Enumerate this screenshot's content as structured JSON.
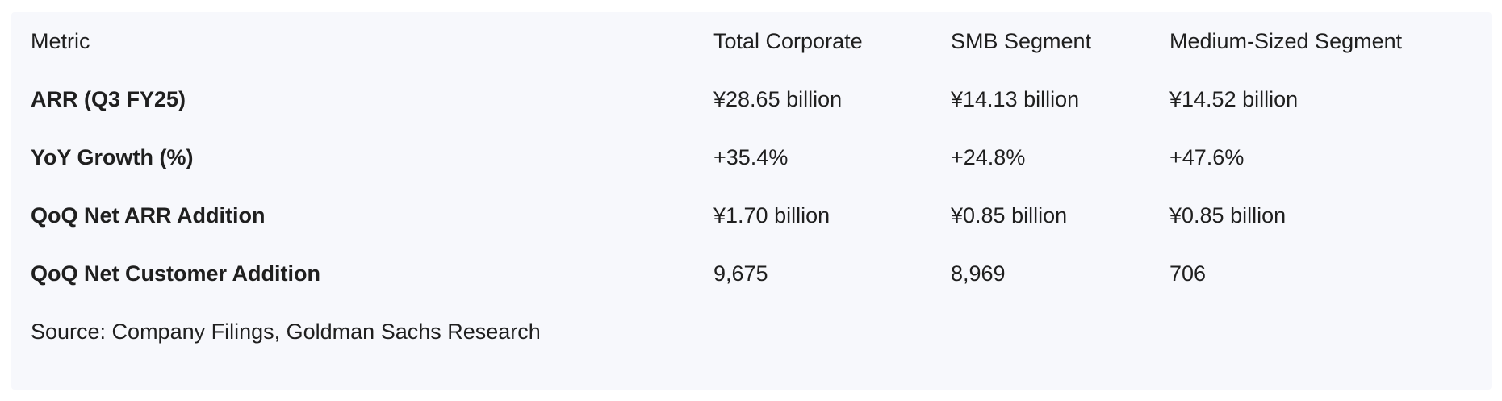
{
  "table": {
    "headers": [
      "Metric",
      "Total Corporate",
      "SMB Segment",
      "Medium-Sized Segment"
    ],
    "rows": [
      [
        "ARR (Q3 FY25)",
        "¥28.65 billion",
        "¥14.13 billion",
        "¥14.52 billion"
      ],
      [
        "YoY Growth (%)",
        "+35.4%",
        "+24.8%",
        "+47.6%"
      ],
      [
        "QoQ Net ARR Addition",
        "¥1.70 billion",
        "¥0.85 billion",
        "¥0.85 billion"
      ],
      [
        "QoQ Net Customer Addition",
        "9,675",
        "8,969",
        "706"
      ]
    ]
  },
  "source": "Source: Company Filings, Goldman Sachs Research",
  "colors": {
    "panel_background": "#f7f8fc",
    "text": "#1f1f1f"
  }
}
